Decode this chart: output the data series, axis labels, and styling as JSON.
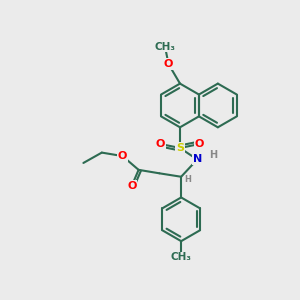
{
  "background_color": "#ebebeb",
  "bond_color": "#2d6b52",
  "bond_lw": 1.5,
  "atom_colors": {
    "O": "#ff0000",
    "N": "#0000cc",
    "S": "#cccc00",
    "C": "#2d6b52",
    "H": "#888888"
  },
  "font_size": 8,
  "figsize": [
    3.0,
    3.0
  ],
  "dpi": 100
}
